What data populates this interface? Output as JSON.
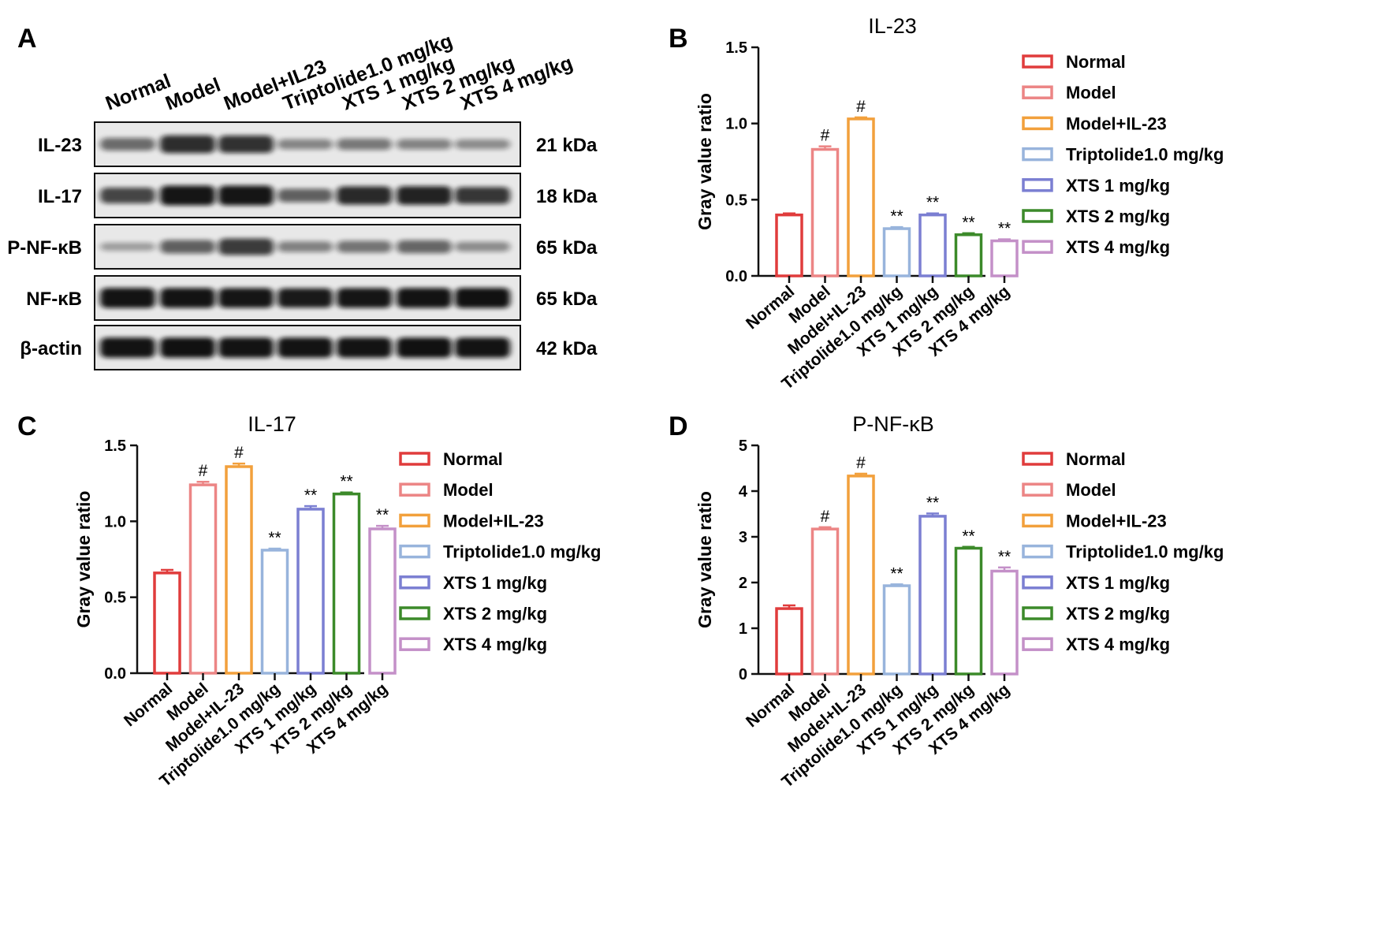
{
  "panel_letters": [
    "A",
    "B",
    "C",
    "D"
  ],
  "western_blot": {
    "lanes": [
      "Normal",
      "Model",
      "Model+IL23",
      "Triptolide1.0 mg/kg",
      "XTS 1 mg/kg",
      "XTS 2 mg/kg",
      "XTS 4 mg/kg"
    ],
    "blots": [
      {
        "label": "IL-23",
        "kda": "21 kDa",
        "intensity": [
          0.5,
          0.82,
          0.8,
          0.35,
          0.42,
          0.36,
          0.32
        ]
      },
      {
        "label": "IL-17",
        "kda": "18 kDa",
        "intensity": [
          0.7,
          0.95,
          0.95,
          0.55,
          0.85,
          0.88,
          0.78
        ]
      },
      {
        "label": "P-NF-κB",
        "kda": "65 kDa",
        "intensity": [
          0.22,
          0.55,
          0.75,
          0.38,
          0.45,
          0.52,
          0.32
        ]
      },
      {
        "label": "NF-κB",
        "kda": "65 kDa",
        "intensity": [
          0.97,
          0.96,
          0.95,
          0.93,
          0.95,
          0.96,
          0.98
        ]
      },
      {
        "label": "β-actin",
        "kda": "42 kDa",
        "intensity": [
          0.97,
          0.98,
          0.97,
          0.97,
          0.97,
          0.98,
          0.97
        ]
      }
    ]
  },
  "colors": {
    "Normal": "#e03c3c",
    "Model": "#ec8585",
    "Model+IL-23": "#f2a03c",
    "Triptolide1.0 mg/kg": "#98b4dc",
    "XTS 1 mg/kg": "#7b7fd2",
    "XTS 2 mg/kg": "#3c8a2a",
    "XTS 4 mg/kg": "#c490c8"
  },
  "chart_data": [
    {
      "panel": "B",
      "type": "bar",
      "title": "IL-23",
      "ylabel": "Gray value ratio",
      "xlabel": "",
      "categories": [
        "Normal",
        "Model",
        "Model+IL-23",
        "Triptolide1.0 mg/kg",
        "XTS 1 mg/kg",
        "XTS 2 mg/kg",
        "XTS 4 mg/kg"
      ],
      "values": [
        0.4,
        0.83,
        1.03,
        0.31,
        0.4,
        0.27,
        0.23
      ],
      "errors": [
        0.01,
        0.02,
        0.01,
        0.01,
        0.01,
        0.01,
        0.01
      ],
      "annotations": [
        "",
        "#",
        "#",
        "**",
        "**",
        "**",
        "**"
      ],
      "ylim": [
        0,
        1.5
      ],
      "yticks": [
        "0.0",
        "0.5",
        "1.0",
        "1.5"
      ],
      "ytick_values": [
        0,
        0.5,
        1.0,
        1.5
      ],
      "legend": [
        "Normal",
        "Model",
        "Model+IL-23",
        "Triptolide1.0 mg/kg",
        "XTS 1 mg/kg",
        "XTS 2 mg/kg",
        "XTS 4 mg/kg"
      ],
      "legend_position": "right",
      "grid": false
    },
    {
      "panel": "C",
      "type": "bar",
      "title": "IL-17",
      "ylabel": "Gray value ratio",
      "xlabel": "",
      "categories": [
        "Normal",
        "Model",
        "Model+IL-23",
        "Triptolide1.0 mg/kg",
        "XTS 1 mg/kg",
        "XTS 2 mg/kg",
        "XTS 4 mg/kg"
      ],
      "values": [
        0.66,
        1.24,
        1.36,
        0.81,
        1.08,
        1.18,
        0.95
      ],
      "errors": [
        0.02,
        0.02,
        0.02,
        0.01,
        0.02,
        0.01,
        0.02
      ],
      "annotations": [
        "",
        "#",
        "#",
        "**",
        "**",
        "**",
        "**"
      ],
      "ylim": [
        0,
        1.5
      ],
      "yticks": [
        "0.0",
        "0.5",
        "1.0",
        "1.5"
      ],
      "ytick_values": [
        0,
        0.5,
        1.0,
        1.5
      ],
      "legend": [
        "Normal",
        "Model",
        "Model+IL-23",
        "Triptolide1.0 mg/kg",
        "XTS 1 mg/kg",
        "XTS 2 mg/kg",
        "XTS 4 mg/kg"
      ],
      "legend_position": "right",
      "grid": false
    },
    {
      "panel": "D",
      "type": "bar",
      "title": "P-NF-κB",
      "ylabel": "Gray value ratio",
      "xlabel": "",
      "categories": [
        "Normal",
        "Model",
        "Model+IL-23",
        "Triptolide1.0 mg/kg",
        "XTS 1 mg/kg",
        "XTS 2 mg/kg",
        "XTS 4 mg/kg"
      ],
      "values": [
        1.43,
        3.17,
        4.33,
        1.93,
        3.45,
        2.75,
        2.25
      ],
      "errors": [
        0.07,
        0.04,
        0.05,
        0.03,
        0.06,
        0.03,
        0.08
      ],
      "annotations": [
        "",
        "#",
        "#",
        "**",
        "**",
        "**",
        "**"
      ],
      "ylim": [
        0,
        5
      ],
      "yticks": [
        "0",
        "1",
        "2",
        "3",
        "4",
        "5"
      ],
      "ytick_values": [
        0,
        1,
        2,
        3,
        4,
        5
      ],
      "legend": [
        "Normal",
        "Model",
        "Model+IL-23",
        "Triptolide1.0 mg/kg",
        "XTS 1 mg/kg",
        "XTS 2 mg/kg",
        "XTS 4 mg/kg"
      ],
      "legend_position": "right",
      "grid": false
    }
  ]
}
